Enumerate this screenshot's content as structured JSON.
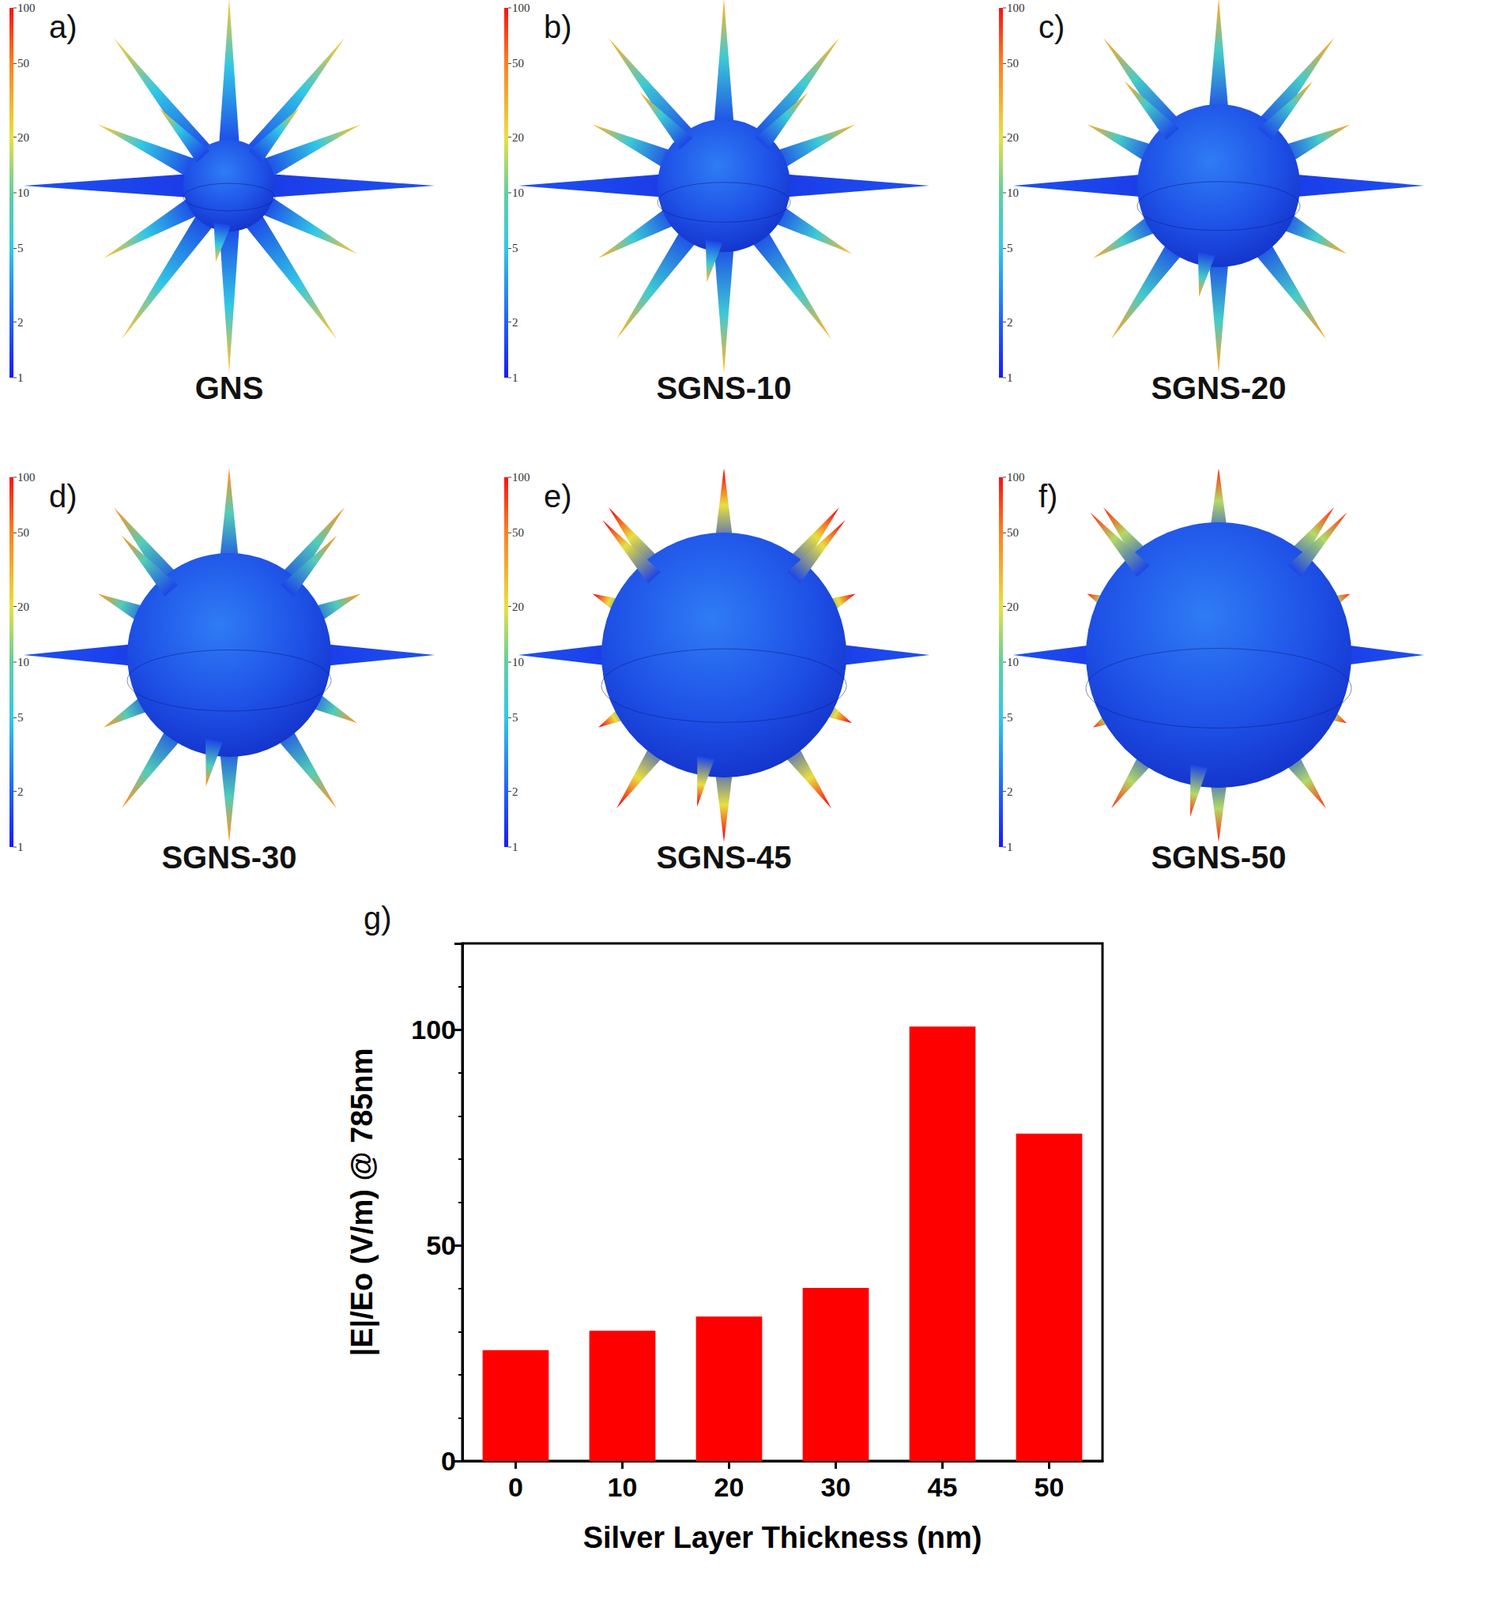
{
  "panels": [
    {
      "letter": "a)",
      "label": "GNS"
    },
    {
      "letter": "b)",
      "label": "SGNS-10"
    },
    {
      "letter": "c)",
      "label": "SGNS-20"
    },
    {
      "letter": "d)",
      "label": "SGNS-30"
    },
    {
      "letter": "e)",
      "label": "SGNS-45"
    },
    {
      "letter": "f)",
      "label": "SGNS-50"
    }
  ],
  "colorbar": {
    "range": [
      1,
      100
    ],
    "ticks": [
      1,
      2,
      5,
      10,
      20,
      50,
      100
    ],
    "log": true
  },
  "chart_data": {
    "type": "bar",
    "panel_label": "g)",
    "x_label": "Silver Layer Thickness (nm)",
    "y_label": "|E|/Eo (V/m) @ 785nm",
    "categories": [
      "0",
      "10",
      "20",
      "30",
      "45",
      "50"
    ],
    "values": [
      25.7,
      30.2,
      33.5,
      40.1,
      100.7,
      75.9
    ],
    "color": "#ff0000",
    "ylim": [
      0,
      120
    ],
    "yticks": [
      0,
      50,
      100
    ],
    "grid": false
  }
}
